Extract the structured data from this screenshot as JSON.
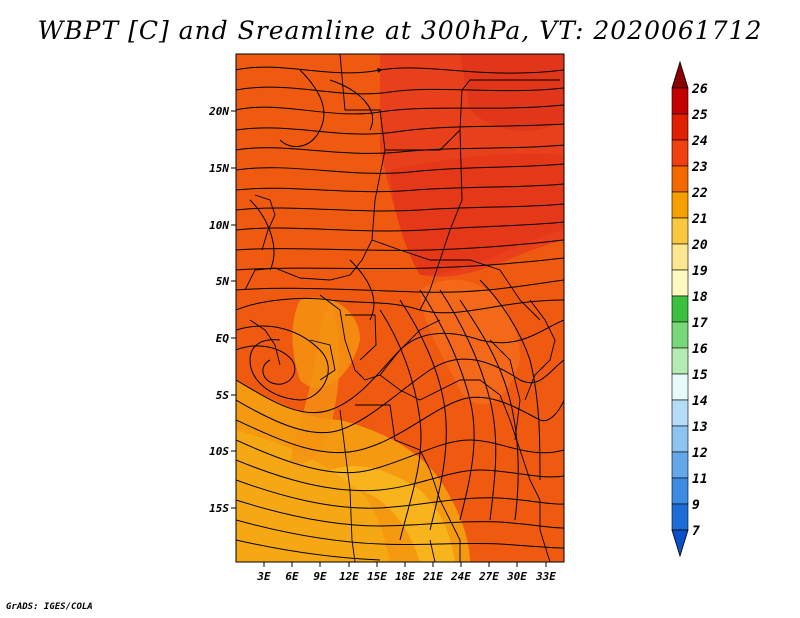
{
  "title": "WBPT [C] and Sreamline at 300hPa, VT: 2020061712",
  "credit": "GrADS: IGES/COLA",
  "map": {
    "lat_labels": [
      "20N",
      "15N",
      "10N",
      "5N",
      "EQ",
      "5S",
      "10S",
      "15S"
    ],
    "lon_labels": [
      "3E",
      "6E",
      "9E",
      "12E",
      "15E",
      "18E",
      "21E",
      "24E",
      "27E",
      "30E",
      "33E"
    ]
  },
  "colorbar": {
    "labels": [
      "26",
      "25",
      "24",
      "23",
      "22",
      "21",
      "20",
      "19",
      "18",
      "17",
      "16",
      "15",
      "14",
      "13",
      "12",
      "11",
      "9",
      "7"
    ],
    "colors": [
      "#8b0000",
      "#c40000",
      "#e02000",
      "#f04010",
      "#f46a00",
      "#f6a000",
      "#fac840",
      "#fce890",
      "#fff8c0",
      "#3cc040",
      "#78d878",
      "#b4ecb4",
      "#e6fafa",
      "#b4dcf6",
      "#8cc4f0",
      "#64a8ea",
      "#3c8ce4",
      "#1e6cd8",
      "#0a50c8"
    ]
  }
}
